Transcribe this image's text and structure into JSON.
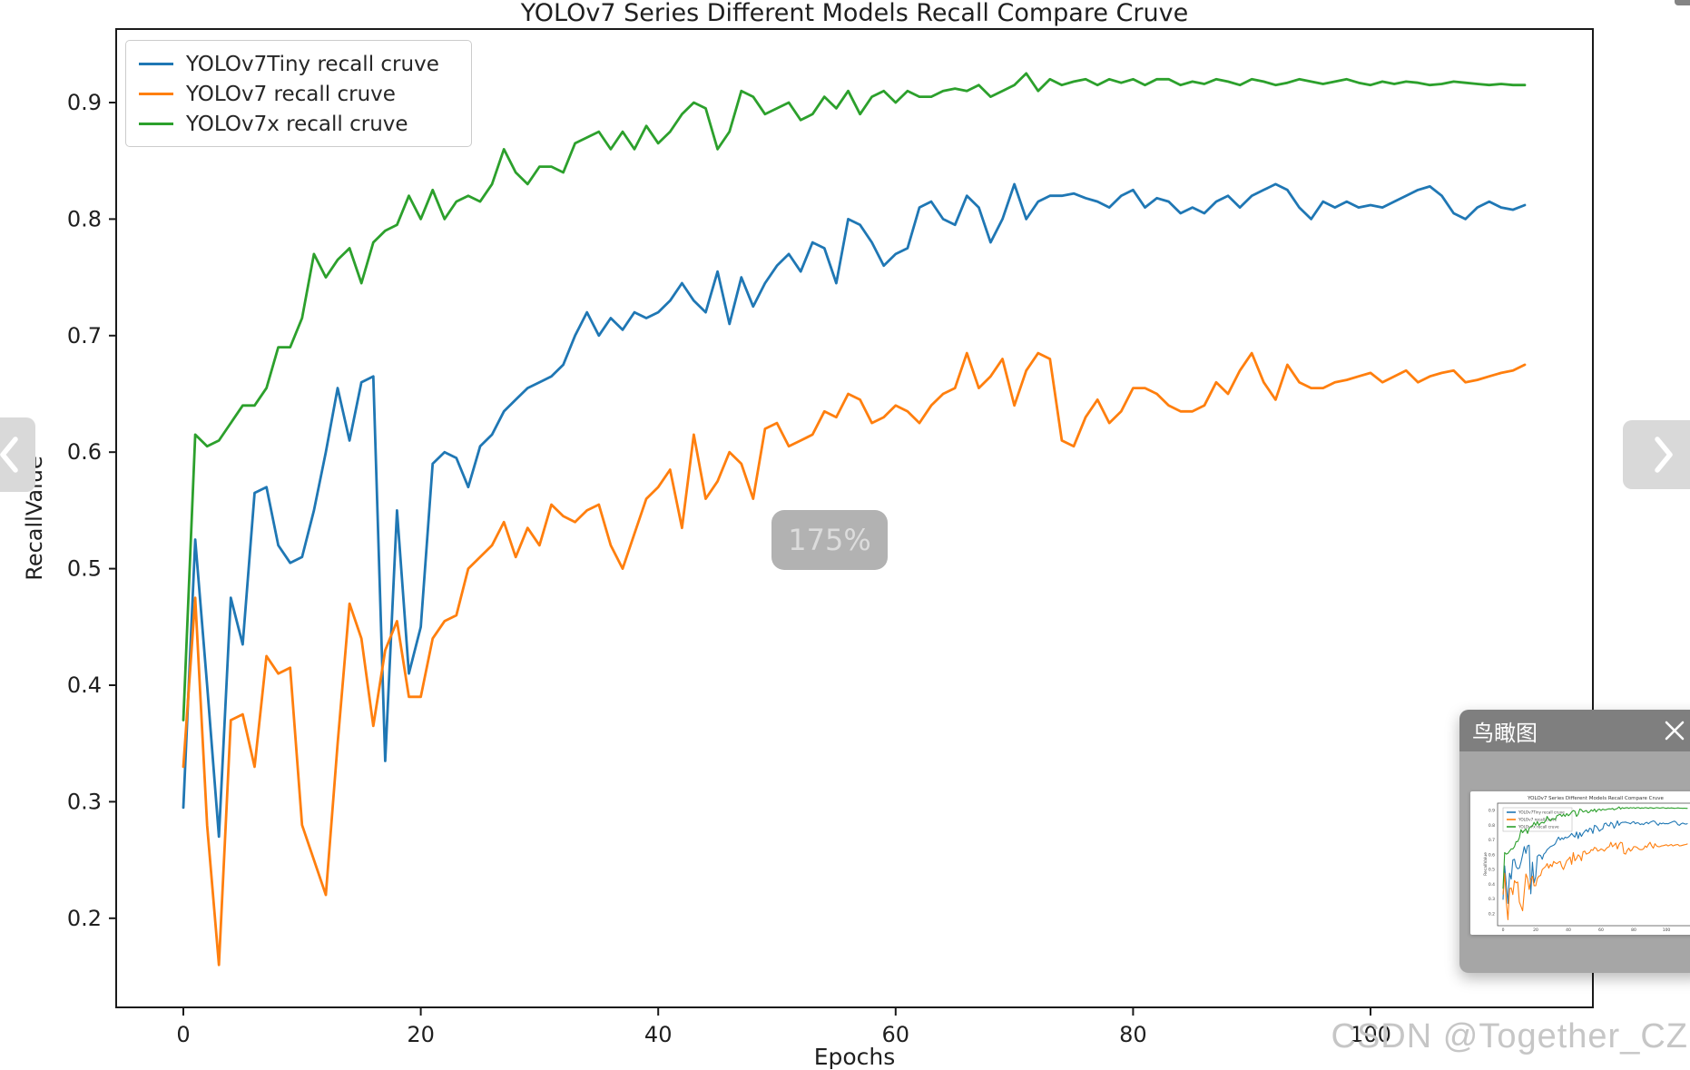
{
  "overlays": {
    "zoom_badge": "175%",
    "watermark": "CSDN @Together_CZ"
  },
  "nav": {
    "prev_icon": "chevron-left",
    "next_icon": "chevron-right"
  },
  "overview_panel": {
    "title": "鸟瞰图",
    "close_icon": "x"
  },
  "colors": {
    "series_blue": "#1f77b4",
    "series_orange": "#ff7f0e",
    "series_green": "#2ca02c",
    "axis": "#1f1f1f",
    "overlay_gray": "#b2b2b2"
  },
  "chart_data": {
    "type": "line",
    "title": "YOLOv7 Series Different Models Recall Compare Cruve",
    "xlabel": "Epochs",
    "ylabel": "RecallValue",
    "xticks": [
      0,
      20,
      40,
      60,
      80,
      100
    ],
    "yticks": [
      0.9,
      0.8,
      0.7,
      0.6,
      0.5,
      0.4,
      0.3,
      0.2
    ],
    "xlim": [
      -5.65,
      118.65
    ],
    "ylim": [
      0.124,
      0.963
    ],
    "grid": false,
    "legend_position": "upper-left",
    "x_start": 0,
    "x_step": 1,
    "series": [
      {
        "name": "YOLOv7Tiny recall cruve",
        "color": "#1f77b4",
        "values": [
          0.295,
          0.525,
          0.4,
          0.27,
          0.475,
          0.435,
          0.565,
          0.57,
          0.52,
          0.505,
          0.51,
          0.55,
          0.6,
          0.655,
          0.61,
          0.66,
          0.665,
          0.335,
          0.55,
          0.41,
          0.45,
          0.59,
          0.6,
          0.595,
          0.57,
          0.605,
          0.615,
          0.635,
          0.645,
          0.655,
          0.66,
          0.665,
          0.675,
          0.7,
          0.72,
          0.7,
          0.715,
          0.705,
          0.72,
          0.715,
          0.72,
          0.73,
          0.745,
          0.73,
          0.72,
          0.755,
          0.71,
          0.75,
          0.725,
          0.745,
          0.76,
          0.77,
          0.755,
          0.78,
          0.775,
          0.745,
          0.8,
          0.795,
          0.78,
          0.76,
          0.77,
          0.775,
          0.81,
          0.815,
          0.8,
          0.795,
          0.82,
          0.81,
          0.78,
          0.8,
          0.83,
          0.8,
          0.815,
          0.82,
          0.82,
          0.822,
          0.818,
          0.815,
          0.81,
          0.82,
          0.825,
          0.81,
          0.818,
          0.815,
          0.805,
          0.81,
          0.805,
          0.815,
          0.82,
          0.81,
          0.82,
          0.825,
          0.83,
          0.825,
          0.81,
          0.8,
          0.815,
          0.81,
          0.815,
          0.81,
          0.812,
          0.81,
          0.815,
          0.82,
          0.825,
          0.828,
          0.82,
          0.805,
          0.8,
          0.81,
          0.815,
          0.81,
          0.808,
          0.812
        ]
      },
      {
        "name": "YOLOv7 recall cruve",
        "color": "#ff7f0e",
        "values": [
          0.33,
          0.475,
          0.28,
          0.16,
          0.37,
          0.375,
          0.33,
          0.425,
          0.41,
          0.415,
          0.28,
          0.25,
          0.22,
          0.35,
          0.47,
          0.44,
          0.365,
          0.43,
          0.455,
          0.39,
          0.39,
          0.44,
          0.455,
          0.46,
          0.5,
          0.51,
          0.52,
          0.54,
          0.51,
          0.535,
          0.52,
          0.555,
          0.545,
          0.54,
          0.55,
          0.555,
          0.52,
          0.5,
          0.53,
          0.56,
          0.57,
          0.585,
          0.535,
          0.615,
          0.56,
          0.575,
          0.6,
          0.59,
          0.56,
          0.62,
          0.625,
          0.605,
          0.61,
          0.615,
          0.635,
          0.63,
          0.65,
          0.645,
          0.625,
          0.63,
          0.64,
          0.635,
          0.625,
          0.64,
          0.65,
          0.655,
          0.685,
          0.655,
          0.665,
          0.68,
          0.64,
          0.67,
          0.685,
          0.68,
          0.61,
          0.605,
          0.63,
          0.645,
          0.625,
          0.635,
          0.655,
          0.655,
          0.65,
          0.64,
          0.635,
          0.635,
          0.64,
          0.66,
          0.65,
          0.67,
          0.685,
          0.66,
          0.645,
          0.675,
          0.66,
          0.655,
          0.655,
          0.66,
          0.662,
          0.665,
          0.668,
          0.66,
          0.665,
          0.67,
          0.66,
          0.665,
          0.668,
          0.67,
          0.66,
          0.662,
          0.665,
          0.668,
          0.67,
          0.675
        ]
      },
      {
        "name": "YOLOv7x recall cruve",
        "color": "#2ca02c",
        "values": [
          0.37,
          0.615,
          0.605,
          0.61,
          0.625,
          0.64,
          0.64,
          0.655,
          0.69,
          0.69,
          0.715,
          0.77,
          0.75,
          0.765,
          0.775,
          0.745,
          0.78,
          0.79,
          0.795,
          0.82,
          0.8,
          0.825,
          0.8,
          0.815,
          0.82,
          0.815,
          0.83,
          0.86,
          0.84,
          0.83,
          0.845,
          0.845,
          0.84,
          0.865,
          0.87,
          0.875,
          0.86,
          0.875,
          0.86,
          0.88,
          0.865,
          0.875,
          0.89,
          0.9,
          0.895,
          0.86,
          0.875,
          0.91,
          0.905,
          0.89,
          0.895,
          0.9,
          0.885,
          0.89,
          0.905,
          0.895,
          0.91,
          0.89,
          0.905,
          0.91,
          0.9,
          0.91,
          0.905,
          0.905,
          0.91,
          0.912,
          0.91,
          0.915,
          0.905,
          0.91,
          0.915,
          0.925,
          0.91,
          0.92,
          0.915,
          0.918,
          0.92,
          0.915,
          0.92,
          0.917,
          0.92,
          0.915,
          0.92,
          0.92,
          0.915,
          0.918,
          0.916,
          0.92,
          0.918,
          0.915,
          0.92,
          0.918,
          0.915,
          0.917,
          0.92,
          0.918,
          0.916,
          0.918,
          0.92,
          0.917,
          0.915,
          0.918,
          0.916,
          0.918,
          0.917,
          0.915,
          0.916,
          0.918,
          0.917,
          0.916,
          0.915,
          0.916,
          0.915,
          0.915
        ]
      }
    ]
  }
}
